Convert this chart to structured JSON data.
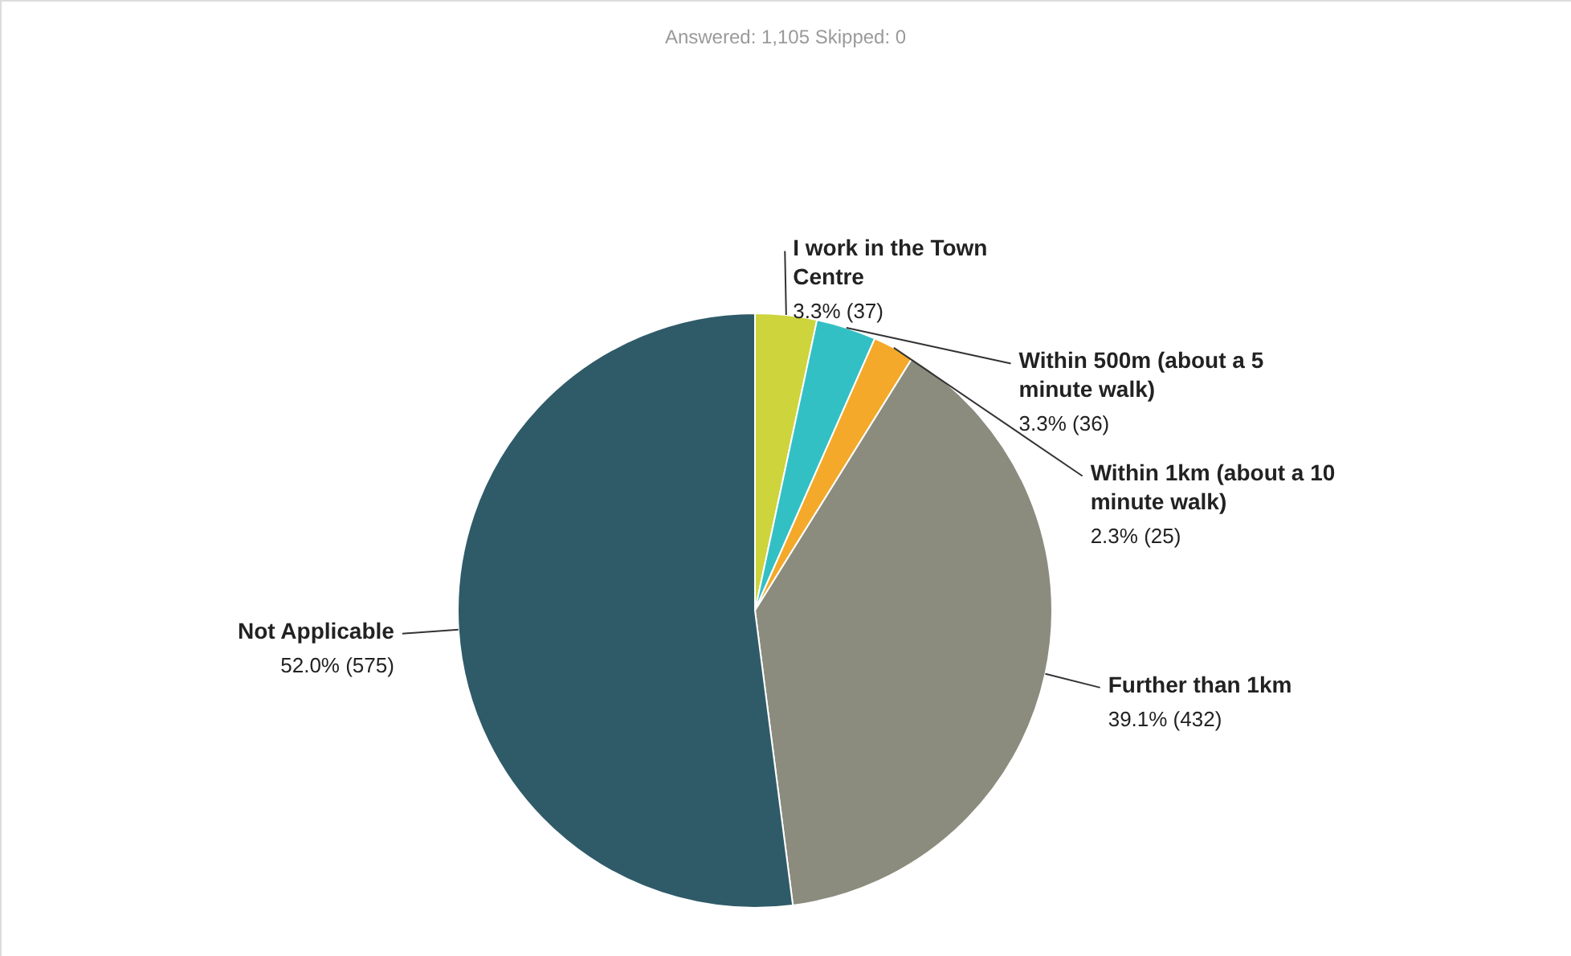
{
  "chart_data": {
    "type": "pie",
    "title": "Answered: 1,105    Skipped: 0",
    "categories": [
      "I work in the Town Centre",
      "Within 500m (about a 5 minute walk)",
      "Within 1km (about a 10 minute walk)",
      "Further than 1km",
      "Not Applicable"
    ],
    "values": [
      37,
      36,
      25,
      432,
      575
    ],
    "colors": [
      "#cdd43c",
      "#33c0c4",
      "#f4a92a",
      "#8c8c7e",
      "#2f5b69"
    ],
    "value_labels": [
      "3.3% (37)",
      "3.3% (36)",
      "2.3% (25)",
      "39.1% (432)",
      "52.0% (575)"
    ]
  }
}
